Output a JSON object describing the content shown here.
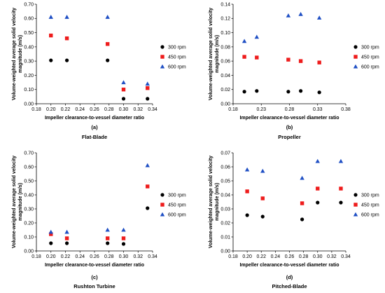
{
  "chart_data": [
    {
      "type": "scatter",
      "panel_label": "(a)",
      "caption": "Flat-Blade",
      "xlabel": "Impeller clearance-to-vessel diameter ratio",
      "ylabel": "Volume-weighted average solid velocity magnitude (m/s)",
      "xlim": [
        0.18,
        0.34
      ],
      "ylim": [
        0,
        0.7
      ],
      "xticks": [
        "0.18",
        "0.20",
        "0.22",
        "0.24",
        "0.26",
        "0.28",
        "0.30",
        "0.32",
        "0.34"
      ],
      "yticks": [
        "0.00",
        "0.10",
        "0.20",
        "0.30",
        "0.40",
        "0.50",
        "0.60",
        "0.70"
      ],
      "grid": false,
      "legend_position": "right",
      "series": [
        {
          "name": "300 rpm",
          "color": "#000000",
          "marker": "circle",
          "x": [
            0.2,
            0.222,
            0.278,
            0.3,
            0.333
          ],
          "y": [
            0.305,
            0.305,
            0.305,
            0.035,
            0.035
          ]
        },
        {
          "name": "450 rpm",
          "color": "#ee1c1c",
          "marker": "square",
          "x": [
            0.2,
            0.222,
            0.278,
            0.3,
            0.333
          ],
          "y": [
            0.48,
            0.46,
            0.42,
            0.1,
            0.11
          ]
        },
        {
          "name": "600 rpm",
          "color": "#1f4fc4",
          "marker": "triangle",
          "x": [
            0.2,
            0.222,
            0.278,
            0.3,
            0.333
          ],
          "y": [
            0.61,
            0.61,
            0.61,
            0.15,
            0.14
          ]
        }
      ]
    },
    {
      "type": "scatter",
      "panel_label": "(b)",
      "caption": "Propeller",
      "xlabel": "Impeller clearance-to-vessel diameter ratio",
      "ylabel": "Volume-weighted average solid velocity magnitude (m/s)",
      "xlim": [
        0.18,
        0.38
      ],
      "ylim": [
        0,
        0.14
      ],
      "xticks": [
        "0.18",
        "0.23",
        "0.28",
        "0.33",
        "0.38"
      ],
      "yticks": [
        "0.00",
        "0.02",
        "0.04",
        "0.06",
        "0.08",
        "0.10",
        "0.12",
        "0.14"
      ],
      "grid": false,
      "legend_position": "right",
      "series": [
        {
          "name": "300 rpm",
          "color": "#000000",
          "marker": "circle",
          "x": [
            0.2,
            0.222,
            0.278,
            0.3,
            0.333
          ],
          "y": [
            0.017,
            0.018,
            0.017,
            0.018,
            0.016
          ]
        },
        {
          "name": "450 rpm",
          "color": "#ee1c1c",
          "marker": "square",
          "x": [
            0.2,
            0.222,
            0.278,
            0.3,
            0.333
          ],
          "y": [
            0.066,
            0.065,
            0.062,
            0.06,
            0.058
          ]
        },
        {
          "name": "600 rpm",
          "color": "#1f4fc4",
          "marker": "triangle",
          "x": [
            0.2,
            0.222,
            0.278,
            0.3,
            0.333
          ],
          "y": [
            0.088,
            0.094,
            0.124,
            0.126,
            0.121
          ]
        }
      ]
    },
    {
      "type": "scatter",
      "panel_label": "(c)",
      "caption": "Rushton Turbine",
      "xlabel": "Impeller clearance-to-vessel diameter ratio",
      "ylabel": "Volume-weighted average solid velocity magnitude (m/s)",
      "xlim": [
        0.18,
        0.34
      ],
      "ylim": [
        0,
        0.7
      ],
      "xticks": [
        "0.18",
        "0.20",
        "0.22",
        "0.24",
        "0.26",
        "0.28",
        "0.30",
        "0.32",
        "0.34"
      ],
      "yticks": [
        "0.00",
        "0.10",
        "0.20",
        "0.30",
        "0.40",
        "0.50",
        "0.60",
        "0.70"
      ],
      "grid": false,
      "legend_position": "right",
      "series": [
        {
          "name": "300 rpm",
          "color": "#000000",
          "marker": "circle",
          "x": [
            0.2,
            0.222,
            0.278,
            0.3,
            0.333
          ],
          "y": [
            0.055,
            0.055,
            0.055,
            0.05,
            0.305
          ]
        },
        {
          "name": "450 rpm",
          "color": "#ee1c1c",
          "marker": "square",
          "x": [
            0.2,
            0.222,
            0.278,
            0.3,
            0.333
          ],
          "y": [
            0.12,
            0.09,
            0.09,
            0.09,
            0.46
          ]
        },
        {
          "name": "600 rpm",
          "color": "#1f4fc4",
          "marker": "triangle",
          "x": [
            0.2,
            0.222,
            0.278,
            0.3,
            0.333
          ],
          "y": [
            0.135,
            0.135,
            0.15,
            0.15,
            0.61
          ]
        }
      ]
    },
    {
      "type": "scatter",
      "panel_label": "(d)",
      "caption": "Pitched-Blade",
      "xlabel": "Impeller clearance-to-vessel diameter ratio",
      "ylabel": "Volume-weighted average solid velocity magnitude (m/s)",
      "xlim": [
        0.18,
        0.34
      ],
      "ylim": [
        0,
        0.07
      ],
      "xticks": [
        "0.18",
        "0.20",
        "0.22",
        "0.24",
        "0.26",
        "0.28",
        "0.30",
        "0.32",
        "0.34"
      ],
      "yticks": [
        "0.00",
        "0.01",
        "0.02",
        "0.03",
        "0.04",
        "0.05",
        "0.06",
        "0.07"
      ],
      "grid": false,
      "legend_position": "right",
      "series": [
        {
          "name": "300 rpm",
          "color": "#000000",
          "marker": "circle",
          "x": [
            0.2,
            0.222,
            0.278,
            0.3,
            0.333
          ],
          "y": [
            0.0255,
            0.0245,
            0.0225,
            0.0345,
            0.0345
          ]
        },
        {
          "name": "450 rpm",
          "color": "#ee1c1c",
          "marker": "square",
          "x": [
            0.2,
            0.222,
            0.278,
            0.3,
            0.333
          ],
          "y": [
            0.0425,
            0.0375,
            0.034,
            0.0445,
            0.0445
          ]
        },
        {
          "name": "600 rpm",
          "color": "#1f4fc4",
          "marker": "triangle",
          "x": [
            0.2,
            0.222,
            0.278,
            0.3,
            0.333
          ],
          "y": [
            0.058,
            0.057,
            0.052,
            0.064,
            0.064
          ]
        }
      ]
    }
  ]
}
